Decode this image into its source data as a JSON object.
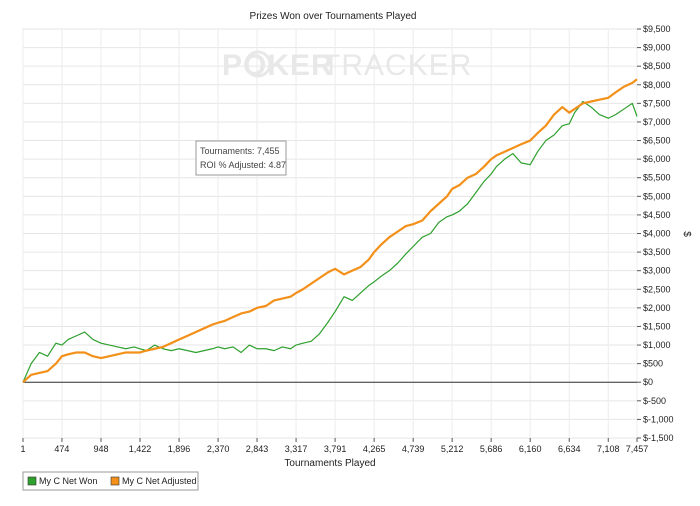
{
  "chart_data": {
    "type": "line",
    "title": "Prizes Won over Tournaments Played",
    "xlabel": "Tournaments Played",
    "ylabel": "$",
    "xlim": [
      1,
      7457
    ],
    "ylim": [
      -1500,
      9500
    ],
    "x_ticks": [
      1,
      474,
      948,
      1422,
      1896,
      2370,
      2843,
      3317,
      3791,
      4265,
      4739,
      5212,
      5686,
      6160,
      6634,
      7108,
      7457
    ],
    "x_tick_labels": [
      "1",
      "474",
      "948",
      "1,422",
      "1,896",
      "2,370",
      "2,843",
      "3,317",
      "3,791",
      "4,265",
      "4,739",
      "5,212",
      "5,686",
      "6,160",
      "6,634",
      "7,108",
      "7,457"
    ],
    "y_ticks": [
      -1500,
      -1000,
      -500,
      0,
      500,
      1000,
      1500,
      2000,
      2500,
      3000,
      3500,
      4000,
      4500,
      5000,
      5500,
      6000,
      6500,
      7000,
      7500,
      8000,
      8500,
      9000,
      9500
    ],
    "y_tick_labels": [
      "$-1,500",
      "$-1,000",
      "$-500",
      "$0",
      "$500",
      "$1,000",
      "$1,500",
      "$2,000",
      "$2,500",
      "$3,000",
      "$3,500",
      "$4,000",
      "$4,500",
      "$5,000",
      "$5,500",
      "$6,000",
      "$6,500",
      "$7,000",
      "$7,500",
      "$8,000",
      "$8,500",
      "$9,000",
      "$9,500"
    ],
    "grid": true,
    "legend_position": "bottom-left",
    "series": [
      {
        "name": "My C Net Won",
        "color": "#2ea02e",
        "x": [
          1,
          100,
          200,
          300,
          400,
          474,
          550,
          650,
          750,
          850,
          948,
          1050,
          1150,
          1250,
          1350,
          1422,
          1500,
          1600,
          1700,
          1800,
          1896,
          2000,
          2100,
          2200,
          2300,
          2370,
          2450,
          2550,
          2650,
          2750,
          2843,
          2950,
          3050,
          3150,
          3250,
          3317,
          3400,
          3500,
          3600,
          3700,
          3791,
          3900,
          4000,
          4100,
          4200,
          4265,
          4350,
          4450,
          4550,
          4650,
          4739,
          4850,
          4950,
          5050,
          5150,
          5212,
          5300,
          5400,
          5500,
          5600,
          5686,
          5750,
          5850,
          5950,
          6050,
          6160,
          6250,
          6350,
          6450,
          6550,
          6634,
          6700,
          6800,
          6900,
          7000,
          7108,
          7200,
          7300,
          7400,
          7457
        ],
        "values": [
          0,
          500,
          800,
          700,
          1050,
          1000,
          1150,
          1250,
          1350,
          1150,
          1050,
          1000,
          950,
          900,
          950,
          900,
          850,
          1000,
          900,
          850,
          900,
          850,
          800,
          850,
          900,
          950,
          900,
          950,
          800,
          1000,
          900,
          900,
          850,
          950,
          900,
          1000,
          1050,
          1100,
          1300,
          1600,
          1900,
          2300,
          2200,
          2400,
          2600,
          2700,
          2850,
          3000,
          3200,
          3450,
          3650,
          3900,
          4000,
          4300,
          4450,
          4500,
          4600,
          4800,
          5100,
          5400,
          5600,
          5800,
          6000,
          6150,
          5900,
          5850,
          6200,
          6500,
          6650,
          6900,
          6950,
          7250,
          7550,
          7400,
          7200,
          7100,
          7200,
          7350,
          7500,
          7150
        ]
      },
      {
        "name": "My C Net Adjusted",
        "color": "#f39019",
        "x": [
          1,
          100,
          200,
          300,
          400,
          474,
          550,
          650,
          750,
          850,
          948,
          1050,
          1150,
          1250,
          1350,
          1422,
          1500,
          1600,
          1700,
          1800,
          1896,
          2000,
          2100,
          2200,
          2300,
          2370,
          2450,
          2550,
          2650,
          2750,
          2843,
          2950,
          3050,
          3150,
          3250,
          3317,
          3400,
          3500,
          3600,
          3700,
          3791,
          3900,
          4000,
          4100,
          4200,
          4265,
          4350,
          4450,
          4550,
          4650,
          4739,
          4850,
          4950,
          5050,
          5150,
          5212,
          5300,
          5400,
          5500,
          5600,
          5686,
          5750,
          5850,
          5950,
          6050,
          6160,
          6250,
          6350,
          6450,
          6550,
          6634,
          6700,
          6800,
          6900,
          7000,
          7108,
          7200,
          7300,
          7400,
          7457
        ],
        "values": [
          0,
          200,
          250,
          300,
          500,
          700,
          750,
          800,
          800,
          700,
          650,
          700,
          750,
          800,
          800,
          800,
          850,
          900,
          950,
          1050,
          1150,
          1250,
          1350,
          1450,
          1550,
          1600,
          1650,
          1750,
          1850,
          1900,
          2000,
          2050,
          2200,
          2250,
          2300,
          2400,
          2500,
          2650,
          2800,
          2950,
          3050,
          2900,
          3000,
          3100,
          3300,
          3500,
          3700,
          3900,
          4050,
          4200,
          4250,
          4350,
          4600,
          4800,
          5000,
          5200,
          5300,
          5500,
          5600,
          5800,
          6000,
          6100,
          6200,
          6300,
          6400,
          6500,
          6700,
          6900,
          7200,
          7400,
          7250,
          7350,
          7500,
          7550,
          7600,
          7650,
          7800,
          7950,
          8050,
          8150
        ]
      }
    ],
    "annotations": {
      "info_box": {
        "line1": "Tournaments: 7,455",
        "line2": "ROI % Adjusted: 4.87"
      }
    },
    "watermark": {
      "part1": "POKER",
      "part2": "TRACKER"
    }
  }
}
